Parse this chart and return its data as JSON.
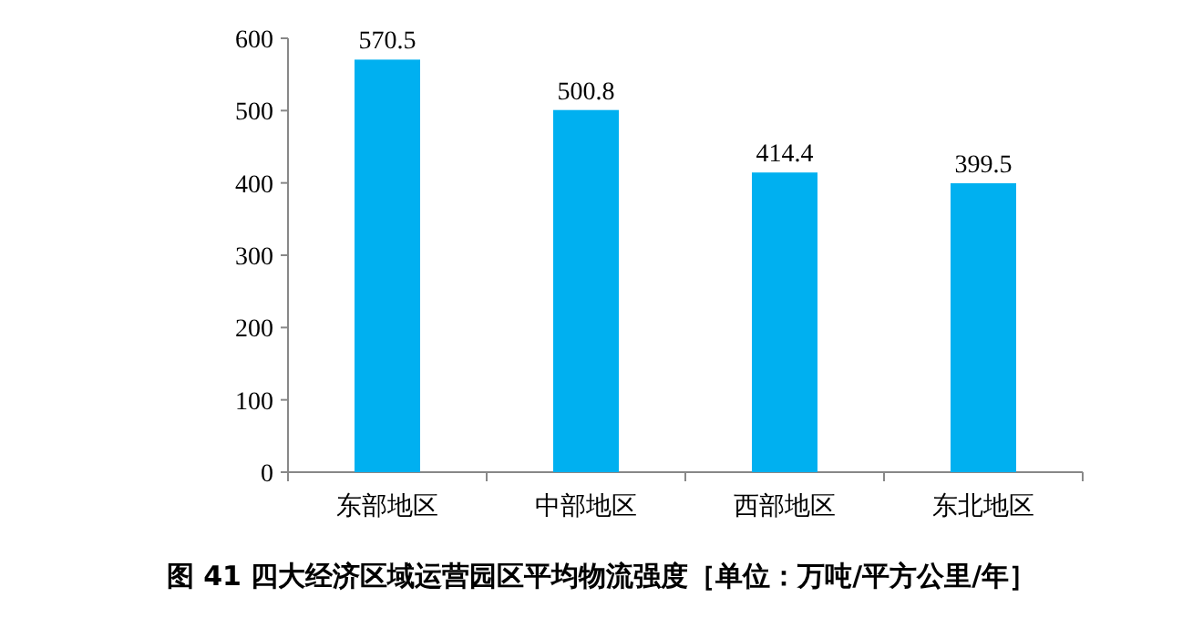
{
  "chart_data": {
    "type": "bar",
    "title": "图 41  四大经济区域运营园区平均物流强度［单位：万吨/平方公里/年］",
    "categories": [
      "东部地区",
      "中部地区",
      "西部地区",
      "东北地区"
    ],
    "values": [
      570.5,
      500.8,
      414.4,
      399.5
    ],
    "color": "#00b0f0",
    "ylim": [
      0,
      600
    ],
    "yticks": [
      0,
      100,
      200,
      300,
      400,
      500,
      600
    ],
    "data_labels": true
  }
}
